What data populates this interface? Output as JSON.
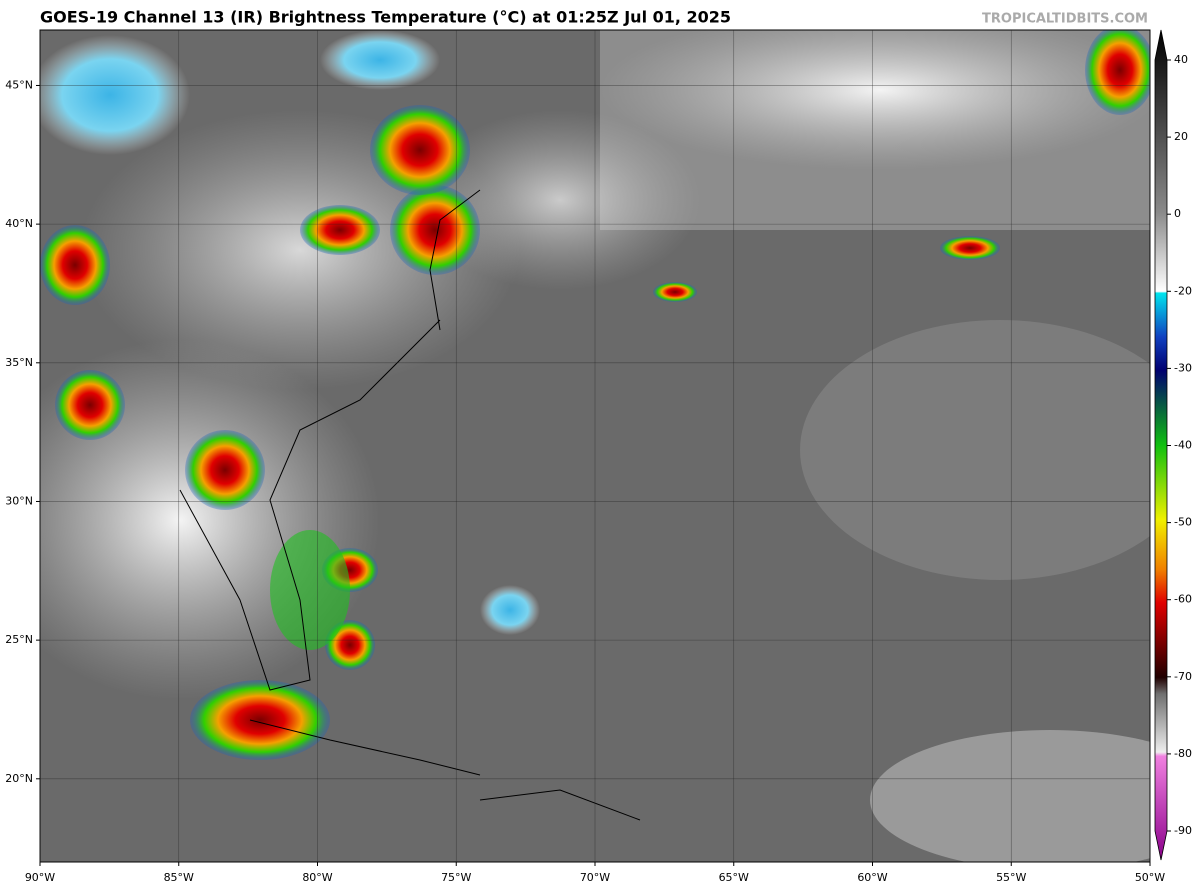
{
  "header": {
    "title": "GOES-19 Channel 13 (IR) Brightness Temperature (°C) at 01:25Z Jul 01, 2025",
    "watermark": "TROPICALTIDBITS.COM"
  },
  "map": {
    "xlim": [
      -90,
      -50
    ],
    "ylim": [
      17,
      47
    ],
    "grid": true,
    "xticks": [
      {
        "value": -90,
        "label": "90°W"
      },
      {
        "value": -85,
        "label": "85°W"
      },
      {
        "value": -80,
        "label": "80°W"
      },
      {
        "value": -75,
        "label": "75°W"
      },
      {
        "value": -70,
        "label": "70°W"
      },
      {
        "value": -65,
        "label": "65°W"
      },
      {
        "value": -60,
        "label": "60°W"
      },
      {
        "value": -55,
        "label": "55°W"
      },
      {
        "value": -50,
        "label": "50°W"
      }
    ],
    "yticks": [
      {
        "value": 20,
        "label": "20°N"
      },
      {
        "value": 25,
        "label": "25°N"
      },
      {
        "value": 30,
        "label": "30°N"
      },
      {
        "value": 35,
        "label": "35°N"
      },
      {
        "value": 40,
        "label": "40°N"
      },
      {
        "value": 45,
        "label": "45°N"
      }
    ]
  },
  "colorbar": {
    "ticks": [
      40,
      20,
      0,
      -20,
      -30,
      -40,
      -50,
      -60,
      -70,
      -80,
      -90
    ]
  }
}
